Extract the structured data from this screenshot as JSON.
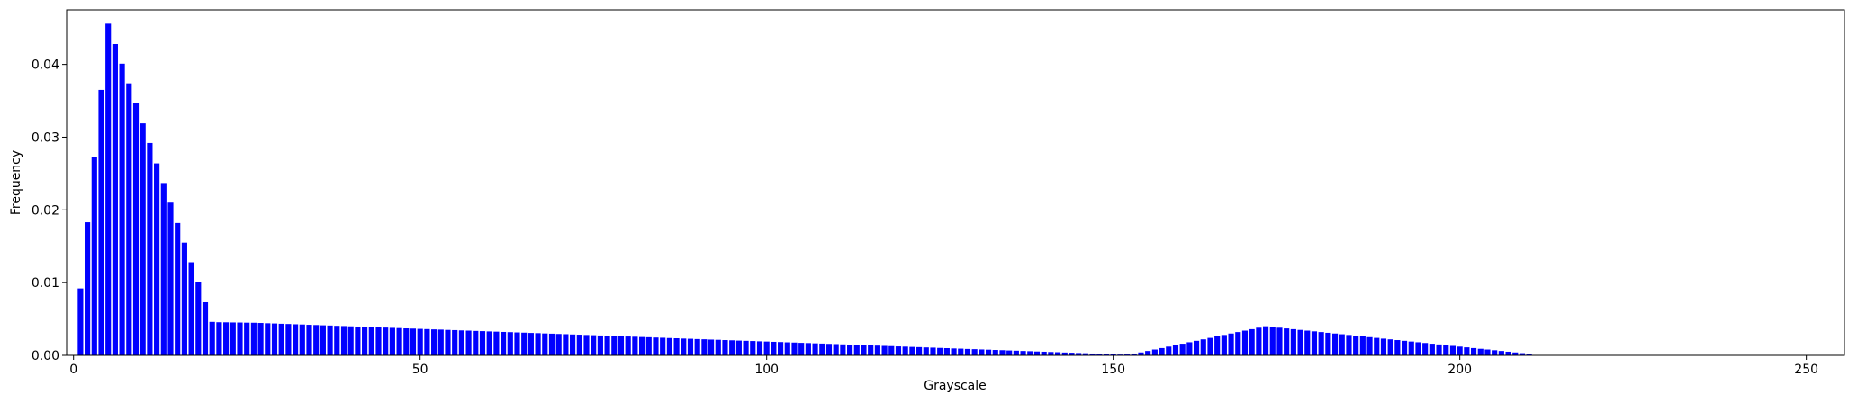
{
  "chart_data": {
    "type": "bar",
    "title": "",
    "xlabel": "Grayscale",
    "ylabel": "Frequency",
    "xlim": [
      -1,
      255.5
    ],
    "ylim": [
      0,
      0.0475
    ],
    "xticks": [
      0,
      50,
      100,
      150,
      200,
      250
    ],
    "xtick_labels": [
      "0",
      "50",
      "100",
      "150",
      "200",
      "250"
    ],
    "yticks": [
      0,
      0.01,
      0.02,
      0.03,
      0.04
    ],
    "ytick_labels": [
      "0.00",
      "0.01",
      "0.02",
      "0.03",
      "0.04"
    ],
    "bar_color": "#0000ff",
    "grid": false,
    "x_start": 1,
    "values": [
      0.0092,
      0.0183,
      0.0273,
      0.0365,
      0.0456,
      0.0428,
      0.0401,
      0.0374,
      0.0347,
      0.0319,
      0.0292,
      0.0264,
      0.0237,
      0.021,
      0.0182,
      0.0155,
      0.0128,
      0.0101,
      0.0073,
      0.0046,
      0.00455,
      0.00454,
      0.00452,
      0.00451,
      0.00449,
      0.00448,
      0.00445,
      0.00441,
      0.00438,
      0.00434,
      0.00431,
      0.00427,
      0.00424,
      0.0042,
      0.00417,
      0.00413,
      0.0041,
      0.00406,
      0.00403,
      0.00399,
      0.00396,
      0.00392,
      0.00389,
      0.00385,
      0.00382,
      0.00378,
      0.00375,
      0.00371,
      0.00368,
      0.00364,
      0.00361,
      0.00357,
      0.00354,
      0.0035,
      0.00347,
      0.00343,
      0.0034,
      0.00336,
      0.00333,
      0.00329,
      0.00326,
      0.00322,
      0.00319,
      0.00315,
      0.00312,
      0.00308,
      0.00305,
      0.00301,
      0.00298,
      0.00294,
      0.00291,
      0.00287,
      0.00284,
      0.0028,
      0.00277,
      0.00273,
      0.0027,
      0.00266,
      0.00263,
      0.00259,
      0.00256,
      0.00252,
      0.00249,
      0.00245,
      0.00242,
      0.00238,
      0.00235,
      0.00231,
      0.00228,
      0.00224,
      0.00221,
      0.00217,
      0.00214,
      0.0021,
      0.00207,
      0.00203,
      0.002,
      0.00197,
      0.00193,
      0.0019,
      0.00186,
      0.00183,
      0.00179,
      0.00176,
      0.00172,
      0.00169,
      0.00165,
      0.00162,
      0.00158,
      0.00155,
      0.00151,
      0.00148,
      0.00144,
      0.00141,
      0.00137,
      0.00134,
      0.0013,
      0.00127,
      0.00123,
      0.0012,
      0.00116,
      0.00113,
      0.00109,
      0.00106,
      0.00102,
      0.00099,
      0.00095,
      0.00092,
      0.00088,
      0.00085,
      0.00081,
      0.00078,
      0.00074,
      0.00071,
      0.00067,
      0.00064,
      0.0006,
      0.00057,
      0.00053,
      0.0005,
      0.00046,
      0.00043,
      0.00039,
      0.00036,
      0.00032,
      0.00029,
      0.00025,
      0.00022,
      0.00018,
      0.00015,
      0.00011,
      0.00012,
      0.00025,
      0.0004,
      0.0006,
      0.0008,
      0.001,
      0.0012,
      0.0014,
      0.0016,
      0.0018,
      0.002,
      0.0022,
      0.0024,
      0.0026,
      0.0028,
      0.003,
      0.0032,
      0.0034,
      0.0036,
      0.0038,
      0.004,
      0.0039,
      0.0038,
      0.0037,
      0.0036,
      0.0035,
      0.0034,
      0.0033,
      0.0032,
      0.0031,
      0.003,
      0.0029,
      0.0028,
      0.0027,
      0.0026,
      0.0025,
      0.0024,
      0.0023,
      0.0022,
      0.0021,
      0.002,
      0.0019,
      0.0018,
      0.0017,
      0.0016,
      0.0015,
      0.0014,
      0.0013,
      0.0012,
      0.0011,
      0.001,
      0.0009,
      0.0008,
      0.0007,
      0.0006,
      0.0005,
      0.0004,
      0.0003,
      0.0002
    ]
  }
}
